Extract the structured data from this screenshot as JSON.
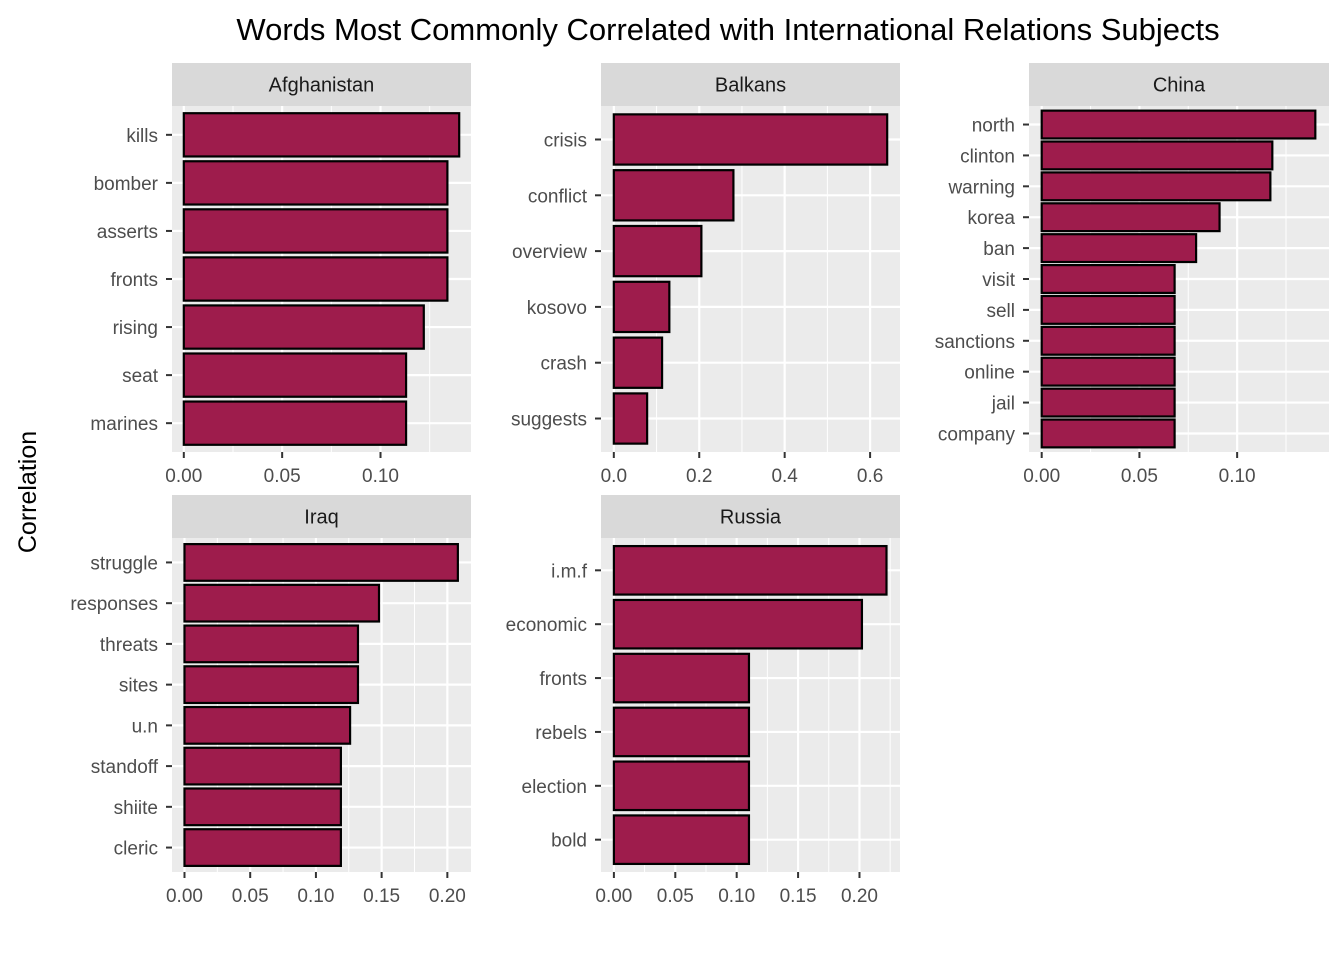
{
  "chart_data": {
    "type": "bar",
    "orientation": "horizontal",
    "title": "Words Most Commonly Correlated with International Relations Subjects",
    "ylabel": "Correlation",
    "xlabel": "",
    "bar_color": "#9E1C4C",
    "bar_outline": "#000000",
    "panel_bg": "#EBEBEB",
    "strip_bg": "#D9D9D9",
    "panels": [
      {
        "name": "Afghanistan",
        "categories": [
          "kills",
          "bomber",
          "asserts",
          "fronts",
          "rising",
          "seat",
          "marines"
        ],
        "values": [
          0.14,
          0.134,
          0.134,
          0.134,
          0.122,
          0.113,
          0.113
        ],
        "xlim": [
          -0.006,
          0.146
        ],
        "ticks": [
          0.0,
          0.05,
          0.1
        ],
        "tick_labels": [
          "0.00",
          "0.05",
          "0.10"
        ]
      },
      {
        "name": "Balkans",
        "categories": [
          "crisis",
          "conflict",
          "overview",
          "kosovo",
          "crash",
          "suggests"
        ],
        "values": [
          0.64,
          0.28,
          0.205,
          0.13,
          0.113,
          0.078
        ],
        "xlim": [
          -0.03,
          0.67
        ],
        "ticks": [
          0.0,
          0.2,
          0.4,
          0.6
        ],
        "tick_labels": [
          "0.0",
          "0.2",
          "0.4",
          "0.6"
        ]
      },
      {
        "name": "China",
        "categories": [
          "north",
          "clinton",
          "warning",
          "korea",
          "ban",
          "visit",
          "sell",
          "sanctions",
          "online",
          "jail",
          "company"
        ],
        "values": [
          0.14,
          0.118,
          0.117,
          0.091,
          0.079,
          0.068,
          0.068,
          0.068,
          0.068,
          0.068,
          0.068
        ],
        "xlim": [
          -0.0065,
          0.147
        ],
        "ticks": [
          0.0,
          0.05,
          0.1
        ],
        "tick_labels": [
          "0.00",
          "0.05",
          "0.10"
        ]
      },
      {
        "name": "Iraq",
        "categories": [
          "struggle",
          "responses",
          "threats",
          "sites",
          "u.n",
          "standoff",
          "shiite",
          "cleric"
        ],
        "values": [
          0.208,
          0.148,
          0.132,
          0.132,
          0.126,
          0.119,
          0.119,
          0.119
        ],
        "xlim": [
          -0.0095,
          0.218
        ],
        "ticks": [
          0.0,
          0.05,
          0.1,
          0.15,
          0.2
        ],
        "tick_labels": [
          "0.00",
          "0.05",
          "0.10",
          "0.15",
          "0.20"
        ]
      },
      {
        "name": "Russia",
        "categories": [
          "i.m.f",
          "economic",
          "fronts",
          "rebels",
          "election",
          "bold"
        ],
        "values": [
          0.222,
          0.202,
          0.11,
          0.11,
          0.11,
          0.11
        ],
        "xlim": [
          -0.0105,
          0.233
        ],
        "ticks": [
          0.0,
          0.05,
          0.1,
          0.15,
          0.2
        ],
        "tick_labels": [
          "0.00",
          "0.05",
          "0.10",
          "0.15",
          "0.20"
        ]
      }
    ]
  }
}
